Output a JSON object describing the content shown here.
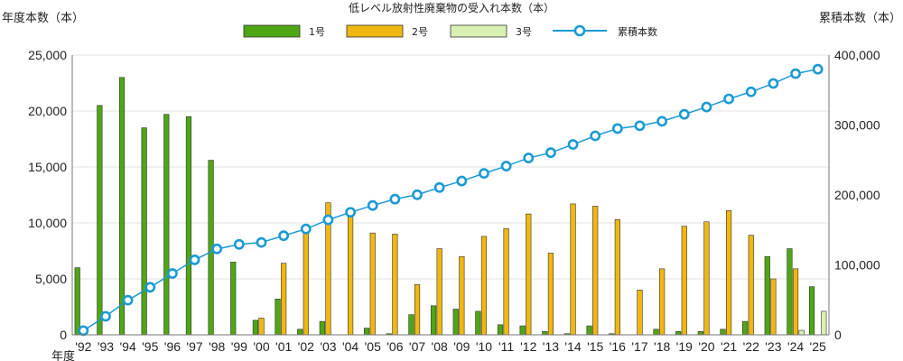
{
  "chart_data": {
    "type": "bar",
    "title": "低レベル放射性廃棄物の受入れ本数（本）",
    "ylabel_left": "年度本数（本）",
    "ylabel_right": "累積本数（本）",
    "xlabel": "年度",
    "categories": [
      "'92",
      "'93",
      "'94",
      "'95",
      "'96",
      "'97",
      "'98",
      "'99",
      "'00",
      "'01",
      "'02",
      "'03",
      "'04",
      "'05",
      "'06",
      "'07",
      "'08",
      "'09",
      "'10",
      "'11",
      "'12",
      "'13",
      "'14",
      "'15",
      "'16",
      "'17",
      "'18",
      "'19",
      "'20",
      "'21",
      "'22",
      "'23",
      "'24",
      "'25"
    ],
    "ylim_left": [
      0,
      25000
    ],
    "ylim_right": [
      0,
      400000
    ],
    "yticks_left": [
      "0",
      "5,000",
      "10,000",
      "15,000",
      "20,000",
      "25,000"
    ],
    "yticks_right": [
      "0",
      "100,000",
      "200,000",
      "300,000",
      "400,000"
    ],
    "grid": true,
    "legend_position": "top",
    "series": [
      {
        "name": "1号",
        "type": "bar",
        "axis": "left",
        "color": "#4ea614",
        "values": [
          6000,
          20500,
          23000,
          18500,
          19700,
          19500,
          15600,
          6500,
          1300,
          3200,
          500,
          1200,
          0,
          600,
          100,
          1800,
          2600,
          2300,
          2100,
          900,
          800,
          300,
          100,
          800,
          100,
          0,
          500,
          300,
          300,
          500,
          1200,
          7000,
          7700,
          4300
        ]
      },
      {
        "name": "2号",
        "type": "bar",
        "axis": "left",
        "color": "#efb70f",
        "values": [
          0,
          0,
          0,
          0,
          0,
          0,
          0,
          0,
          1500,
          6400,
          9200,
          11800,
          10800,
          9100,
          9000,
          4500,
          7700,
          7000,
          8800,
          9500,
          10800,
          7300,
          11700,
          11500,
          10300,
          4000,
          5900,
          9700,
          10100,
          11100,
          8900,
          5000,
          5900,
          0
        ]
      },
      {
        "name": "3号",
        "type": "bar",
        "axis": "left",
        "color": "#d9f0b3",
        "values": [
          0,
          0,
          0,
          0,
          0,
          0,
          0,
          0,
          0,
          0,
          0,
          0,
          0,
          0,
          0,
          0,
          0,
          0,
          0,
          0,
          0,
          0,
          0,
          0,
          0,
          0,
          0,
          0,
          0,
          0,
          0,
          0,
          400,
          2100
        ]
      },
      {
        "name": "累積本数",
        "type": "line",
        "axis": "right",
        "color": "#1a9ad6",
        "values": [
          6000,
          26500,
          49500,
          68000,
          87700,
          107200,
          122800,
          129300,
          132100,
          141700,
          151400,
          164400,
          175200,
          184900,
          194000,
          200300,
          210600,
          219900,
          230800,
          241200,
          252800,
          260400,
          272200,
          284500,
          294900,
          298900,
          305300,
          315300,
          325700,
          337300,
          347400,
          359400,
          373400,
          379800
        ]
      }
    ]
  }
}
